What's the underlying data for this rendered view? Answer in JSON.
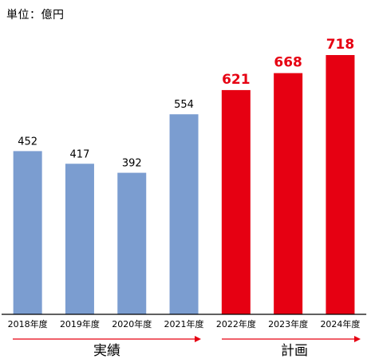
{
  "unit_label": "単位：億円",
  "colors": {
    "actual": "#7b9dd0",
    "plan": "#e60012",
    "axis": "#000000",
    "arrow": "#e60012"
  },
  "chart_data": {
    "type": "bar",
    "categories": [
      "2018年度",
      "2019年度",
      "2020年度",
      "2021年度",
      "2022年度",
      "2023年度",
      "2024年度"
    ],
    "values": [
      452,
      417,
      392,
      554,
      621,
      668,
      718
    ],
    "groups": [
      {
        "label": "実績",
        "categories": [
          "2018年度",
          "2019年度",
          "2020年度",
          "2021年度"
        ]
      },
      {
        "label": "計画",
        "categories": [
          "2022年度",
          "2023年度",
          "2024年度"
        ]
      }
    ],
    "ylim": [
      0,
      760
    ],
    "grid": false,
    "title": "",
    "xlabel": "",
    "ylabel": ""
  }
}
